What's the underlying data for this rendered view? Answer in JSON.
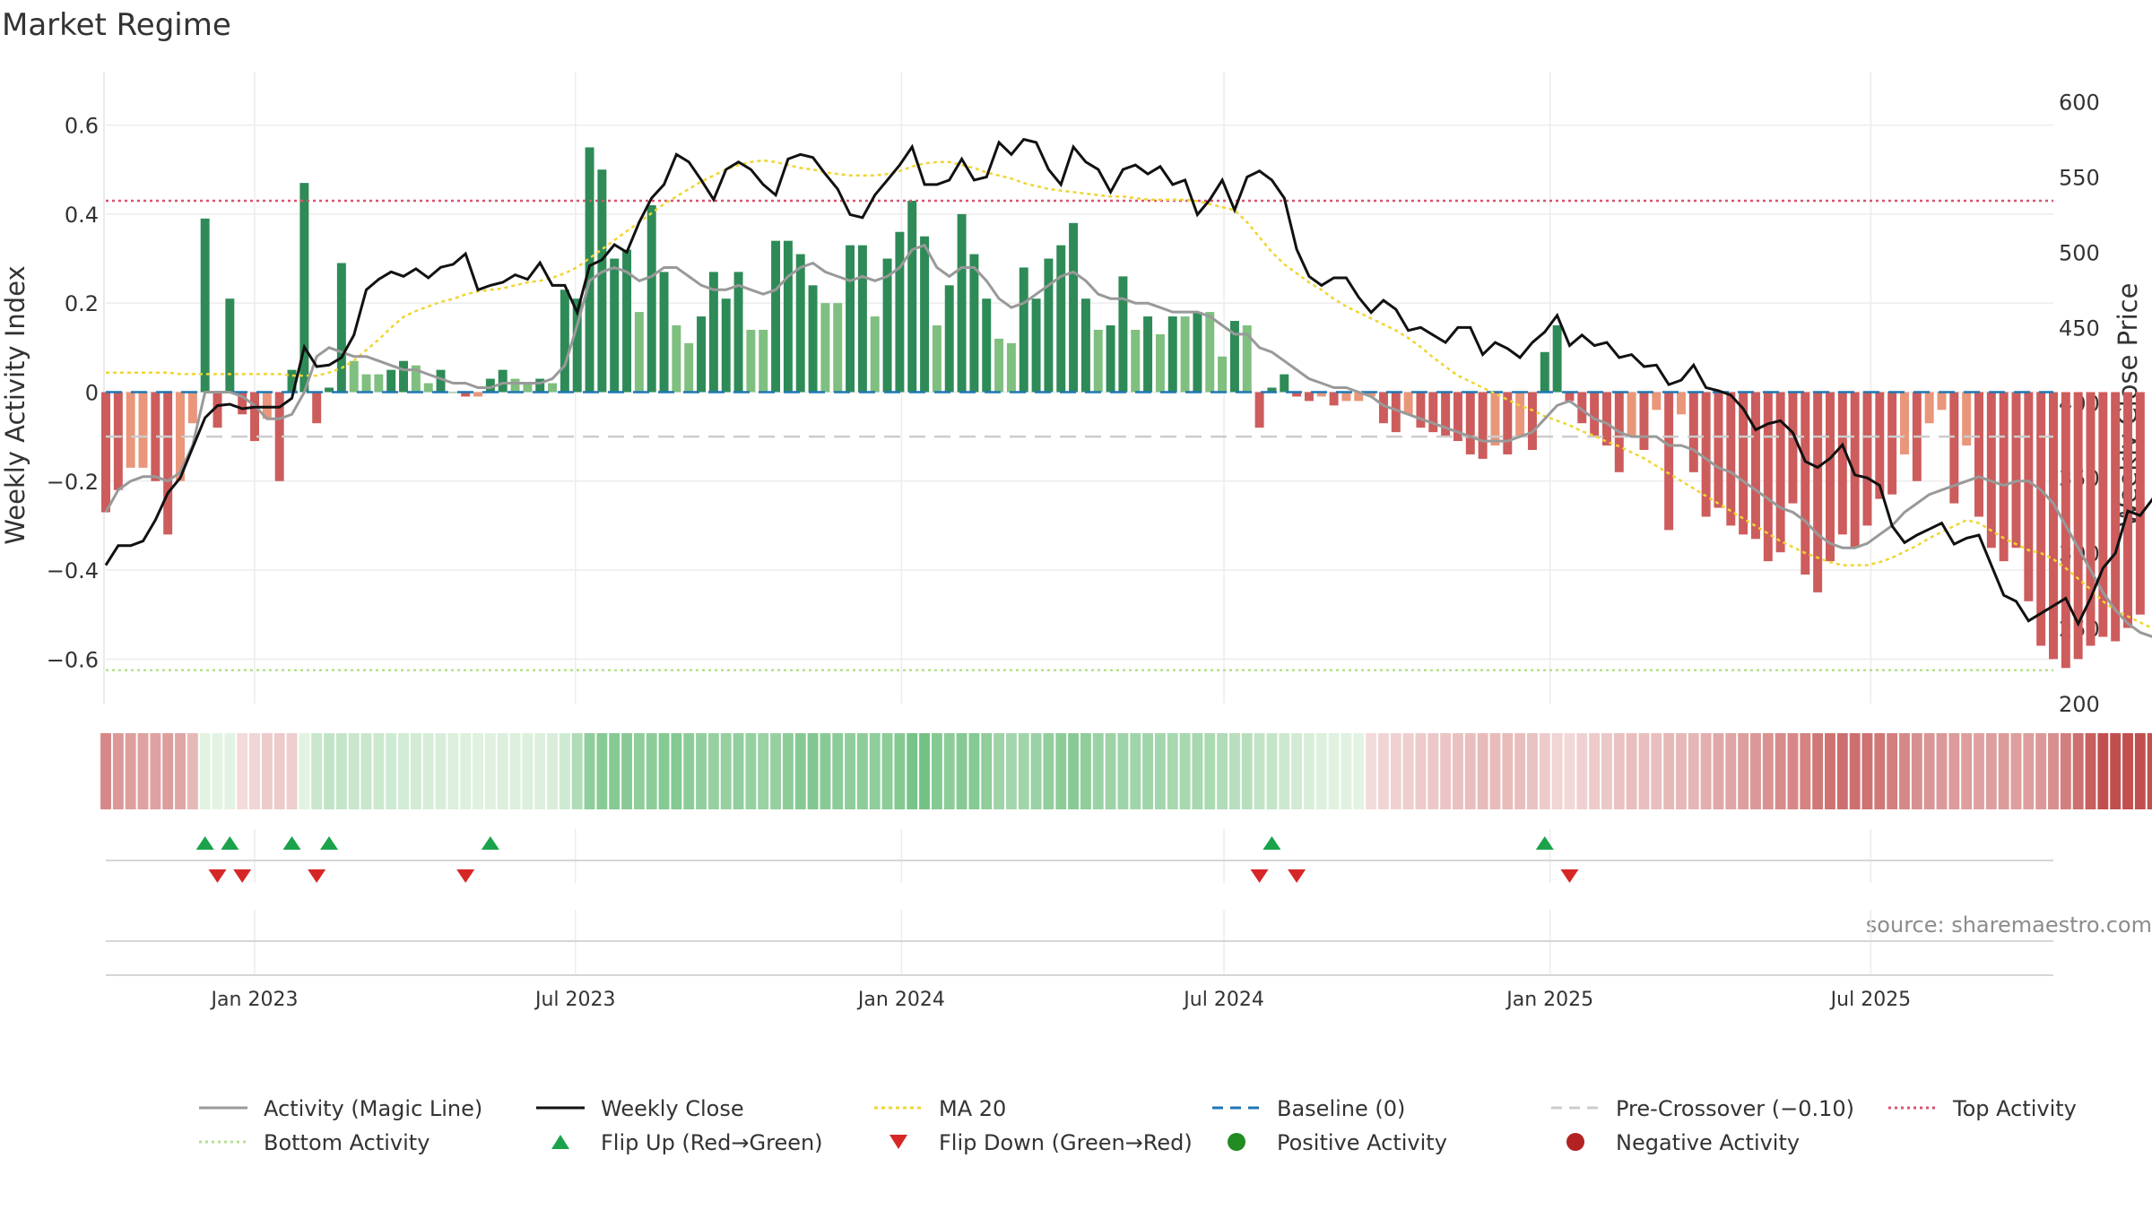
{
  "title": "Market Regime",
  "source_note": "source: sharemaestro.com",
  "colors": {
    "pos_strong": "#2e8b57",
    "pos_light": "#7fbf7f",
    "neg_strong": "#cd5c5c",
    "neg_light": "#e9967a",
    "magic_line": "#999999",
    "close": "#111111",
    "ma": "#f0d531",
    "baseline": "#1f77b4",
    "pre_crossover": "#cccccc",
    "top": "#d9536f",
    "bottom": "#b5e08d",
    "flip_up": "#1aa34a",
    "flip_down": "#d62728",
    "pos_dot": "#228b22",
    "neg_dot": "#b22222"
  },
  "chart_data": {
    "type": "bar",
    "title": "Market Regime",
    "ylabel_left": "Weekly Activity Index",
    "ylabel_right": "Weekly Close Price",
    "ylim_left": [
      -0.7,
      0.72
    ],
    "ylim_right": [
      200,
      620
    ],
    "left_ticks": [
      {
        "v": 0.6,
        "label": "0.6"
      },
      {
        "v": 0.4,
        "label": "0.4"
      },
      {
        "v": 0.2,
        "label": "0.2"
      },
      {
        "v": 0,
        "label": "0"
      },
      {
        "v": -0.2,
        "label": "−0.2"
      },
      {
        "v": -0.4,
        "label": "−0.4"
      },
      {
        "v": -0.6,
        "label": "−0.6"
      }
    ],
    "right_ticks": [
      {
        "v": 600,
        "label": "600"
      },
      {
        "v": 550,
        "label": "550"
      },
      {
        "v": 500,
        "label": "500"
      },
      {
        "v": 450,
        "label": "450"
      },
      {
        "v": 400,
        "label": "400"
      },
      {
        "v": 350,
        "label": "350"
      },
      {
        "v": 300,
        "label": "300"
      },
      {
        "v": 250,
        "label": "250"
      },
      {
        "v": 200,
        "label": "200"
      }
    ],
    "x_start": "2022-10-09",
    "x_end": "2025-10-12",
    "x_ticks": [
      {
        "date": "2023-01-01",
        "label": "Jan 2023"
      },
      {
        "date": "2023-07-01",
        "label": "Jul 2023"
      },
      {
        "date": "2024-01-01",
        "label": "Jan 2024"
      },
      {
        "date": "2024-07-01",
        "label": "Jul 2024"
      },
      {
        "date": "2025-01-01",
        "label": "Jan 2025"
      },
      {
        "date": "2025-07-01",
        "label": "Jul 2025"
      }
    ],
    "first_week": "2022-10-09",
    "week_step_days": 7,
    "activity": [
      -0.27,
      -0.22,
      -0.17,
      -0.17,
      -0.2,
      -0.32,
      -0.2,
      -0.07,
      0.39,
      -0.08,
      0.21,
      -0.05,
      -0.11,
      -0.06,
      -0.2,
      0.05,
      0.47,
      -0.07,
      0.01,
      0.29,
      0.07,
      0.04,
      0.04,
      0.05,
      0.07,
      0.06,
      0.02,
      0.05,
      0.0,
      -0.01,
      -0.01,
      0.03,
      0.05,
      0.03,
      0.02,
      0.03,
      0.02,
      0.23,
      0.21,
      0.55,
      0.5,
      0.3,
      0.32,
      0.18,
      0.42,
      0.27,
      0.15,
      0.11,
      0.17,
      0.27,
      0.21,
      0.27,
      0.14,
      0.14,
      0.34,
      0.34,
      0.31,
      0.24,
      0.2,
      0.2,
      0.33,
      0.33,
      0.17,
      0.3,
      0.36,
      0.43,
      0.35,
      0.15,
      0.24,
      0.4,
      0.31,
      0.21,
      0.12,
      0.11,
      0.28,
      0.21,
      0.3,
      0.33,
      0.38,
      0.21,
      0.14,
      0.15,
      0.26,
      0.14,
      0.17,
      0.13,
      0.17,
      0.17,
      0.18,
      0.18,
      0.08,
      0.16,
      0.15,
      -0.08,
      0.01,
      0.04,
      -0.01,
      -0.02,
      -0.01,
      -0.03,
      -0.02,
      -0.02,
      -0.01,
      -0.07,
      -0.09,
      -0.05,
      -0.08,
      -0.09,
      -0.1,
      -0.11,
      -0.14,
      -0.15,
      -0.12,
      -0.14,
      -0.1,
      -0.13,
      0.09,
      0.15,
      -0.02,
      -0.07,
      -0.1,
      -0.12,
      -0.18,
      -0.1,
      -0.13,
      -0.04,
      -0.31,
      -0.05,
      -0.18,
      -0.28,
      -0.26,
      -0.3,
      -0.32,
      -0.33,
      -0.38,
      -0.36,
      -0.25,
      -0.41,
      -0.45,
      -0.38,
      -0.32,
      -0.35,
      -0.3,
      -0.24,
      -0.23,
      -0.14,
      -0.2,
      -0.07,
      -0.04,
      -0.25,
      -0.12,
      -0.28,
      -0.35,
      -0.38,
      -0.35,
      -0.47,
      -0.57,
      -0.6,
      -0.62,
      -0.6,
      -0.57,
      -0.55,
      -0.56,
      -0.53,
      -0.5
    ],
    "magic_line": [
      -0.27,
      -0.22,
      -0.2,
      -0.19,
      -0.19,
      -0.2,
      -0.18,
      -0.12,
      0.0,
      0.0,
      0.0,
      -0.01,
      -0.03,
      -0.06,
      -0.06,
      -0.05,
      0.0,
      0.08,
      0.1,
      0.09,
      0.08,
      0.08,
      0.07,
      0.06,
      0.05,
      0.05,
      0.04,
      0.03,
      0.02,
      0.02,
      0.01,
      0.01,
      0.02,
      0.02,
      0.02,
      0.02,
      0.03,
      0.06,
      0.15,
      0.25,
      0.27,
      0.28,
      0.27,
      0.25,
      0.26,
      0.28,
      0.28,
      0.26,
      0.24,
      0.23,
      0.23,
      0.24,
      0.23,
      0.22,
      0.23,
      0.26,
      0.28,
      0.29,
      0.27,
      0.26,
      0.25,
      0.26,
      0.25,
      0.26,
      0.28,
      0.32,
      0.33,
      0.28,
      0.26,
      0.28,
      0.28,
      0.25,
      0.21,
      0.19,
      0.2,
      0.22,
      0.24,
      0.26,
      0.27,
      0.25,
      0.22,
      0.21,
      0.21,
      0.2,
      0.2,
      0.19,
      0.18,
      0.18,
      0.18,
      0.17,
      0.15,
      0.13,
      0.13,
      0.1,
      0.09,
      0.07,
      0.05,
      0.03,
      0.02,
      0.01,
      0.01,
      0.0,
      -0.01,
      -0.03,
      -0.04,
      -0.05,
      -0.06,
      -0.07,
      -0.08,
      -0.09,
      -0.1,
      -0.11,
      -0.11,
      -0.11,
      -0.1,
      -0.09,
      -0.06,
      -0.03,
      -0.02,
      -0.04,
      -0.06,
      -0.07,
      -0.09,
      -0.1,
      -0.1,
      -0.1,
      -0.12,
      -0.12,
      -0.13,
      -0.15,
      -0.17,
      -0.18,
      -0.2,
      -0.22,
      -0.24,
      -0.26,
      -0.27,
      -0.29,
      -0.32,
      -0.34,
      -0.35,
      -0.35,
      -0.34,
      -0.32,
      -0.3,
      -0.27,
      -0.25,
      -0.23,
      -0.22,
      -0.21,
      -0.2,
      -0.19,
      -0.2,
      -0.21,
      -0.2,
      -0.2,
      -0.22,
      -0.25,
      -0.3,
      -0.35,
      -0.4,
      -0.45,
      -0.49,
      -0.52,
      -0.54,
      -0.55,
      -0.55
    ],
    "weekly_close": [
      292,
      305,
      305,
      308,
      322,
      340,
      350,
      370,
      390,
      398,
      399,
      396,
      397,
      397,
      397,
      403,
      437,
      424,
      425,
      430,
      445,
      475,
      482,
      487,
      484,
      489,
      483,
      490,
      492,
      499,
      475,
      478,
      480,
      485,
      482,
      493,
      478,
      478,
      460,
      491,
      495,
      505,
      500,
      520,
      536,
      545,
      565,
      560,
      548,
      535,
      555,
      560,
      555,
      545,
      538,
      562,
      565,
      563,
      552,
      542,
      525,
      523,
      538,
      548,
      558,
      570,
      545,
      545,
      548,
      562,
      548,
      550,
      573,
      565,
      575,
      573,
      555,
      545,
      570,
      560,
      555,
      540,
      555,
      558,
      552,
      557,
      545,
      548,
      525,
      535,
      548,
      528,
      550,
      554,
      548,
      536,
      502,
      484,
      478,
      483,
      483,
      470,
      460,
      468,
      462,
      448,
      450,
      445,
      440,
      450,
      450,
      432,
      440,
      436,
      430,
      440,
      447,
      458,
      438,
      445,
      438,
      440,
      430,
      432,
      424,
      425,
      412,
      415,
      425,
      410,
      408,
      405,
      396,
      382,
      386,
      388,
      380,
      361,
      357,
      363,
      372,
      352,
      350,
      345,
      318,
      307,
      312,
      316,
      320,
      306,
      310,
      312,
      292,
      272,
      268,
      255,
      260,
      265,
      270,
      253,
      270,
      290,
      300,
      328,
      325,
      336,
      302,
      275,
      262,
      255,
      262,
      236,
      232,
      225,
      242,
      237,
      240
    ],
    "ma20": [
      420,
      420,
      420,
      420,
      420,
      420,
      419,
      419,
      419,
      419,
      419,
      419,
      419,
      419,
      419,
      418,
      418,
      418,
      420,
      423,
      428,
      435,
      442,
      450,
      457,
      461,
      464,
      467,
      469,
      472,
      474,
      475,
      476,
      478,
      480,
      481,
      483,
      486,
      490,
      496,
      502,
      508,
      514,
      520,
      526,
      532,
      537,
      542,
      547,
      551,
      555,
      558,
      560,
      561,
      560,
      558,
      556,
      555,
      553,
      552,
      551,
      551,
      551,
      552,
      554,
      557,
      559,
      560,
      560,
      558,
      556,
      553,
      551,
      549,
      546,
      544,
      542,
      541,
      540,
      539,
      538,
      537,
      537,
      536,
      535,
      535,
      535,
      535,
      534,
      532,
      530,
      528,
      520,
      510,
      500,
      492,
      486,
      480,
      475,
      469,
      464,
      460,
      456,
      452,
      448,
      443,
      437,
      430,
      424,
      418,
      414,
      410,
      406,
      402,
      398,
      395,
      391,
      388,
      385,
      381,
      378,
      374,
      371,
      367,
      363,
      358,
      353,
      348,
      343,
      338,
      333,
      328,
      323,
      318,
      313,
      308,
      304,
      300,
      297,
      294,
      292,
      292,
      292,
      294,
      297,
      301,
      305,
      310,
      314,
      318,
      322,
      320,
      315,
      310,
      306,
      302,
      300,
      296,
      290,
      283,
      276,
      268,
      262,
      258,
      254,
      250,
      248
    ]
  },
  "legend": [
    {
      "label": "Activity (Magic Line)",
      "kind": "line",
      "color": "#999999",
      "dash": ""
    },
    {
      "label": "Weekly Close",
      "kind": "line",
      "color": "#111111",
      "dash": ""
    },
    {
      "label": "MA 20",
      "kind": "line",
      "color": "#f0d531",
      "dash": "4,4"
    },
    {
      "label": "Baseline (0)",
      "kind": "line",
      "color": "#1f77b4",
      "dash": "12,8"
    },
    {
      "label": "Pre-Crossover (−0.10)",
      "kind": "line",
      "color": "#cccccc",
      "dash": "12,8"
    },
    {
      "label": "Top Activity",
      "kind": "line",
      "color": "#d9536f",
      "dash": "3,4"
    },
    {
      "label": "Bottom Activity",
      "kind": "line",
      "color": "#b5e08d",
      "dash": "3,4"
    },
    {
      "label": "Flip Up (Red→Green)",
      "kind": "tri-up",
      "color": "#1aa34a",
      "dash": ""
    },
    {
      "label": "Flip Down (Green→Red)",
      "kind": "tri-down",
      "color": "#d62728",
      "dash": ""
    },
    {
      "label": "Positive Activity",
      "kind": "dot",
      "color": "#228b22",
      "dash": ""
    },
    {
      "label": "Negative Activity",
      "kind": "dot",
      "color": "#b22222",
      "dash": ""
    }
  ],
  "reference_lines": {
    "top": 0.43,
    "bottom": -0.625,
    "pre_crossover": -0.1,
    "baseline": 0
  }
}
